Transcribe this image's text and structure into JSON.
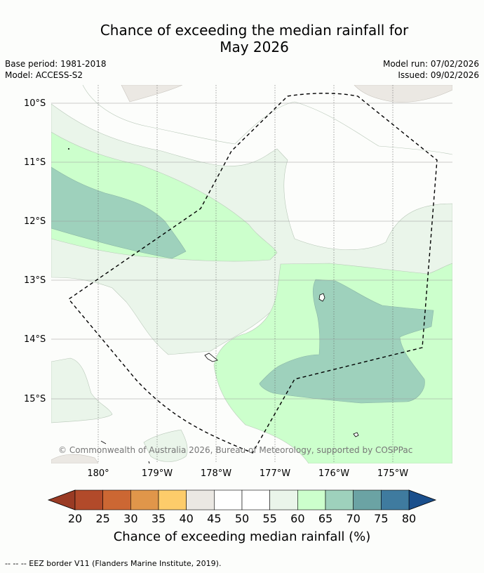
{
  "title": {
    "line1": "Chance of exceeding the median rainfall for",
    "line2": "May 2026"
  },
  "meta_left": {
    "base_period": "Base period: 1981-2018",
    "model": "Model: ACCESS-S2"
  },
  "meta_right": {
    "model_run": "Model run: 07/02/2026",
    "issued": "Issued: 09/02/2026"
  },
  "map": {
    "lat_labels": [
      "10°S",
      "11°S",
      "12°S",
      "13°S",
      "14°S",
      "15°S"
    ],
    "lon_labels": [
      "180°",
      "179°W",
      "178°W",
      "177°W",
      "176°W",
      "175°W"
    ],
    "copyright": "© Commonwealth of Australia 2026, Bureau of Meteorology, supported by COSPPac",
    "colors": {
      "c55_60": "#eaf5ea",
      "c60_65": "#ccffcc",
      "c65_70": "#9ed1bc",
      "land": "#ebe8e3"
    }
  },
  "legend": {
    "title": "Chance of exceeding median rainfall (%)",
    "ticks": [
      "20",
      "25",
      "30",
      "35",
      "40",
      "45",
      "50",
      "55",
      "60",
      "65",
      "70",
      "75",
      "80"
    ],
    "colors": [
      "#b24a2a",
      "#cc6733",
      "#e0964a",
      "#fdcc6a",
      "#ebe8e3",
      "#ffffff",
      "#ffffff",
      "#eaf5ea",
      "#ccffcc",
      "#9ed1bc",
      "#6ba3a4",
      "#3f7b9f"
    ],
    "low_arrow": "#9a3b24",
    "high_arrow": "#1a4f8c"
  },
  "footer": {
    "eez": "--  --  -- EEZ border V11 (Flanders Marine Institute, 2019)."
  }
}
